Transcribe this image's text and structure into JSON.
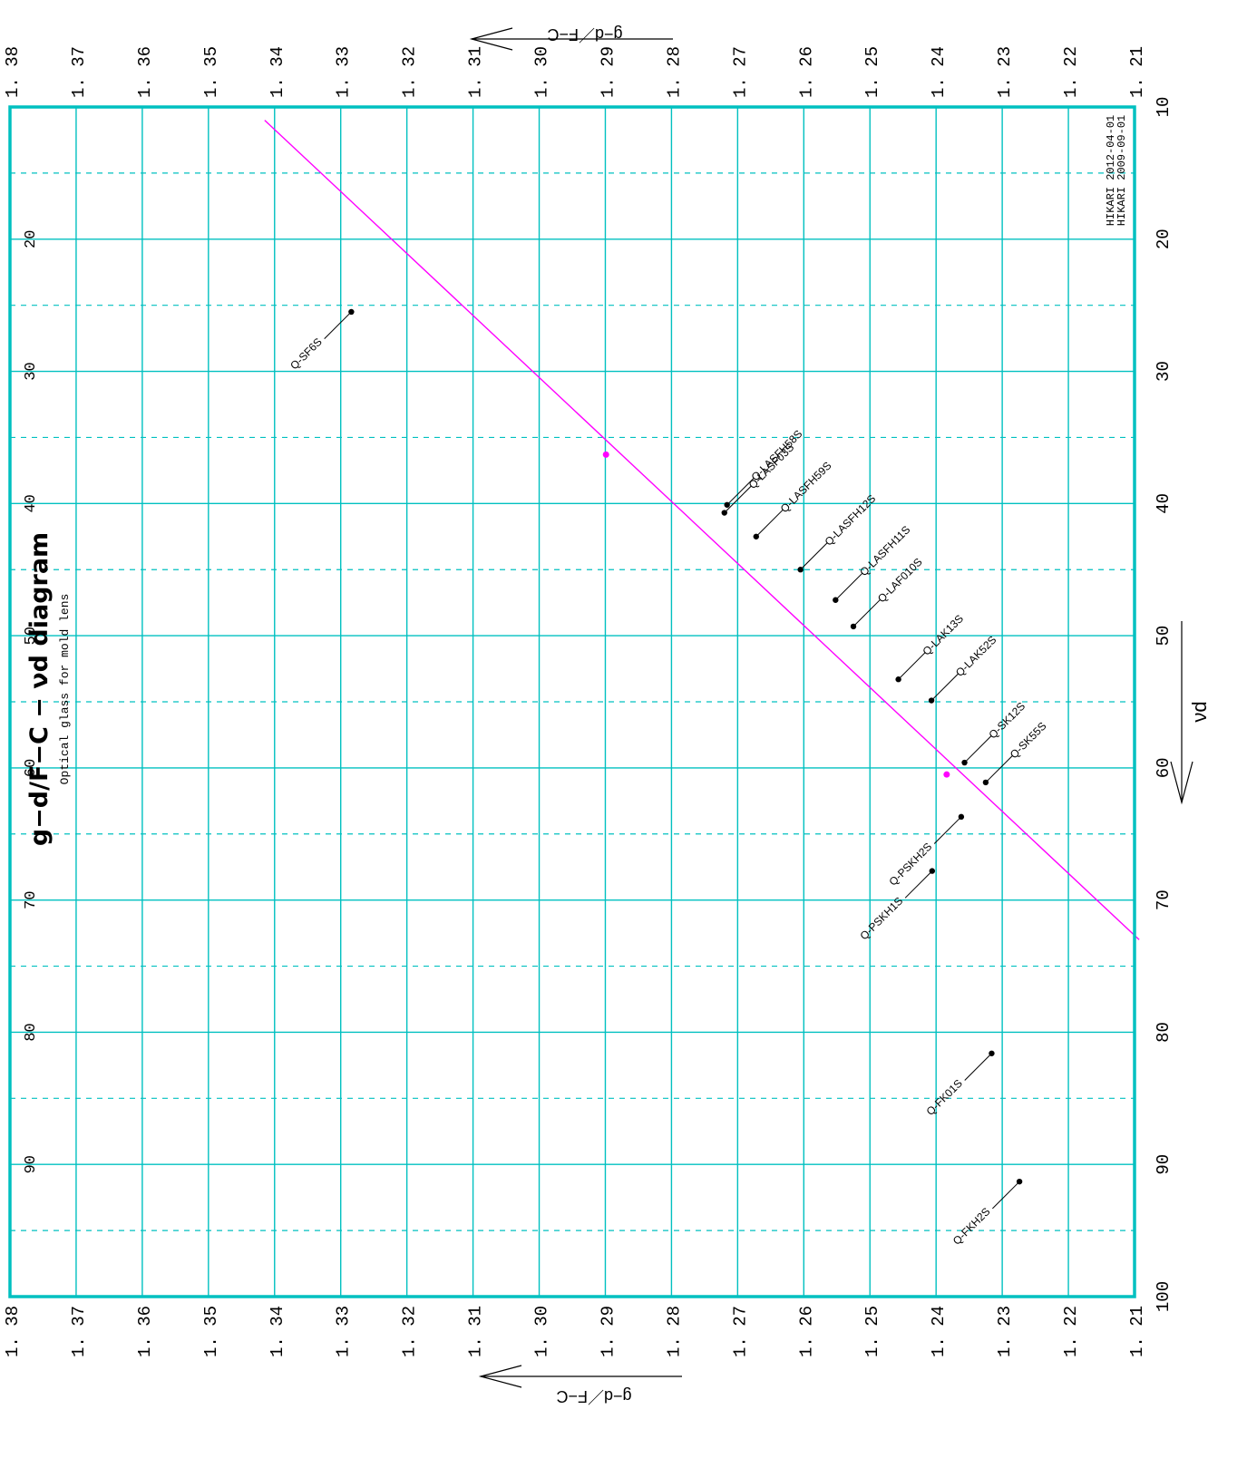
{
  "chart_data": {
    "type": "scatter",
    "title": "g−d/F−C − νd diagram",
    "subtitle": "Optical glass for mold lens",
    "credits": [
      "HIKARI 2012-04-01",
      "HIKARI 2009-09-01"
    ],
    "x_axis": {
      "label": "νd",
      "range": [
        10,
        100
      ],
      "major_ticks": [
        10,
        20,
        30,
        40,
        50,
        60,
        70,
        80,
        90,
        100
      ],
      "left_labels": [
        "20",
        "30",
        "40",
        "50",
        "60",
        "70",
        "80",
        "90"
      ],
      "right_labels": [
        "10",
        "20",
        "30",
        "40",
        "50",
        "60",
        "70",
        "80",
        "90",
        "100"
      ],
      "minor_dashed": [
        15,
        25,
        35,
        45,
        55,
        65,
        75,
        85,
        95
      ]
    },
    "y_axis": {
      "label": "g−d／F−C",
      "range": [
        1.21,
        1.38
      ],
      "ticks": [
        1.38,
        1.37,
        1.36,
        1.35,
        1.34,
        1.33,
        1.32,
        1.31,
        1.3,
        1.29,
        1.28,
        1.27,
        1.26,
        1.25,
        1.24,
        1.23,
        1.22,
        1.21
      ],
      "tick_labels": [
        "1. 38",
        "1. 37",
        "1. 36",
        "1. 35",
        "1. 34",
        "1. 33",
        "1. 32",
        "1. 31",
        "1. 30",
        "1. 29",
        "1. 28",
        "1. 27",
        "1. 26",
        "1. 25",
        "1. 24",
        "1. 23",
        "1. 22",
        "1. 21"
      ]
    },
    "normal_line": {
      "from": {
        "nd": 11.0,
        "gd": 1.3415
      },
      "to": {
        "nd": 73.0,
        "gd": 1.2093
      },
      "anchors": [
        {
          "nd": 36.3,
          "gd": 1.2899
        },
        {
          "nd": 60.5,
          "gd": 1.2384
        }
      ],
      "color": "#ff00ff"
    },
    "points": [
      {
        "name": "Q-SF6S",
        "nd": 25.5,
        "gd": 1.3284
      },
      {
        "name": "Q-LASFH58S",
        "nd": 40.1,
        "gd": 1.2716
      },
      {
        "name": "Q-LASF03S",
        "nd": 40.7,
        "gd": 1.272
      },
      {
        "name": "Q-LASFH59S",
        "nd": 42.5,
        "gd": 1.2672
      },
      {
        "name": "Q-LASFH12S",
        "nd": 45.0,
        "gd": 1.2605
      },
      {
        "name": "Q-LASFH11S",
        "nd": 47.3,
        "gd": 1.2552
      },
      {
        "name": "Q-LAF010S",
        "nd": 49.3,
        "gd": 1.2525
      },
      {
        "name": "Q-LAK13S",
        "nd": 53.3,
        "gd": 1.2457
      },
      {
        "name": "Q-LAK52S",
        "nd": 54.9,
        "gd": 1.2407
      },
      {
        "name": "Q-SK12S",
        "nd": 59.6,
        "gd": 1.2357
      },
      {
        "name": "Q-SK55S",
        "nd": 61.1,
        "gd": 1.2325
      },
      {
        "name": "Q-PSKH2S",
        "nd": 63.7,
        "gd": 1.2362
      },
      {
        "name": "Q-PSKH1S",
        "nd": 67.8,
        "gd": 1.2406
      },
      {
        "name": "Q-FK01S",
        "nd": 81.6,
        "gd": 1.2316
      },
      {
        "name": "Q-FKH2S",
        "nd": 91.3,
        "gd": 1.2274
      }
    ],
    "colors": {
      "grid": "#00c0c0",
      "frame": "#00c0c0",
      "line": "#ff00ff",
      "marker": "#000000"
    },
    "grid": true
  }
}
